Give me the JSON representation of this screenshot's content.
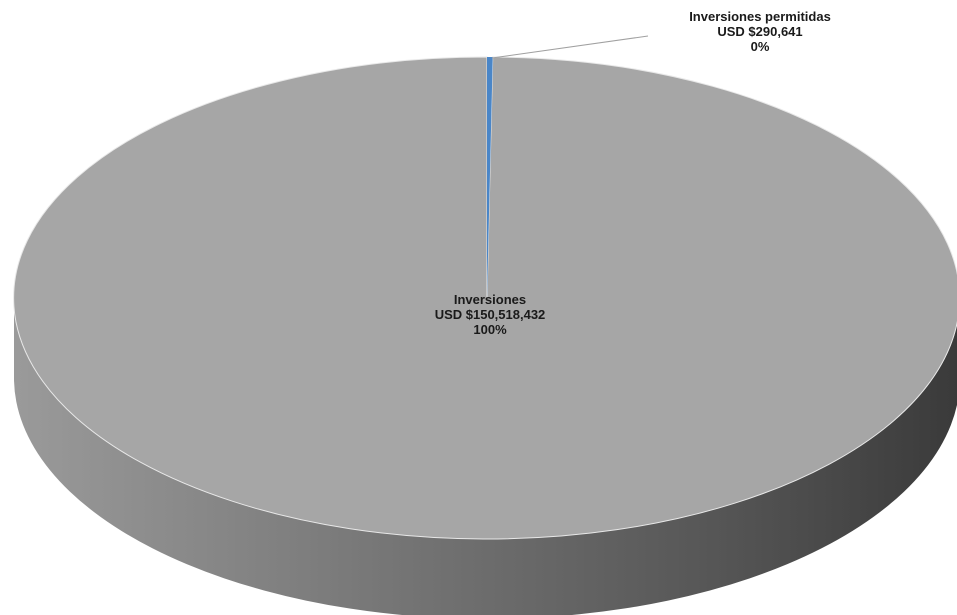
{
  "chart_data": {
    "type": "pie",
    "title": "",
    "slices": [
      {
        "label": "Inversiones",
        "amount_label": "USD $150,518,432",
        "pct_label": "100%",
        "value": 150518432
      },
      {
        "label": "Inversiones permitidas",
        "amount_label": "USD $290,641",
        "pct_label": "0%",
        "value": 290641
      }
    ],
    "colors": {
      "main_top": "#a6a6a6",
      "main_side_light": "#9a9a9a",
      "main_side_dark": "#3f3f3f",
      "small_slice": "#4a86c8"
    },
    "legend": "none",
    "style": "3d"
  }
}
